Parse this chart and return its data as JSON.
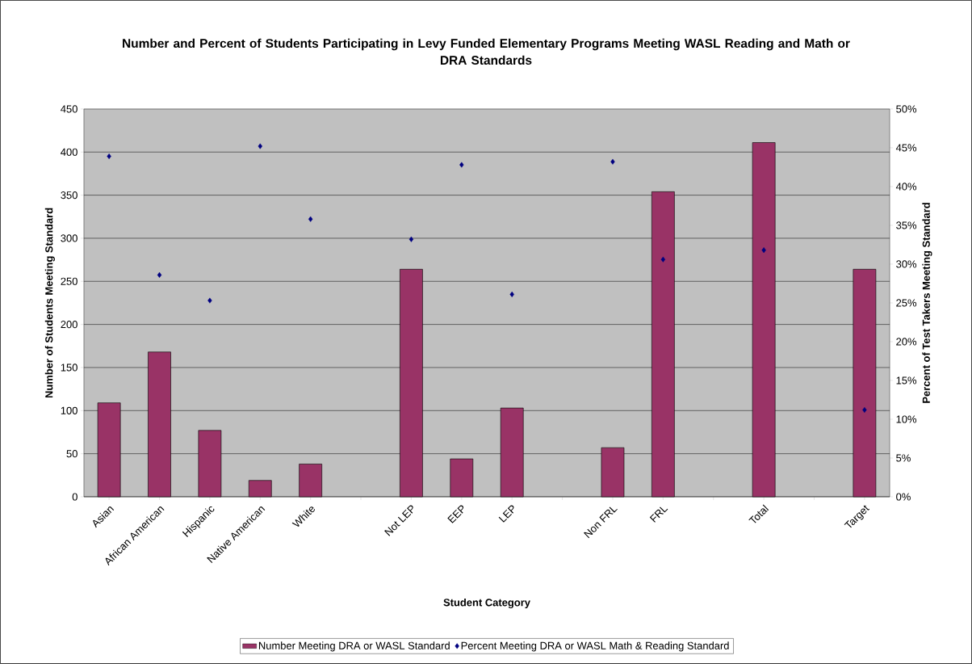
{
  "chart_data": {
    "type": "bar",
    "title": "Number and Percent of Students Participating in Levy Funded Elementary Programs Meeting WASL Reading and Math or DRA Standards",
    "xlabel": "Student Category",
    "ylabel": "Number of Students Meeting Standard",
    "y2label": "Percent of Test Takers Meeting Standard",
    "categories": [
      "Asian",
      "African American",
      "Hispanic",
      "Native American",
      "White",
      null,
      "Not LEP",
      "EEP",
      "LEP",
      null,
      "Non FRL",
      "FRL",
      null,
      "Total",
      null,
      "Target"
    ],
    "series": [
      {
        "name": "Number Meeting DRA or WASL Standard",
        "color": "#993366",
        "values": [
          109,
          168,
          77,
          19,
          38,
          null,
          264,
          44,
          103,
          null,
          57,
          354,
          null,
          411,
          null,
          264
        ]
      },
      {
        "name": "Percent Meeting DRA or WASL Math & Reading Standard",
        "type": "scatter",
        "axis": "y2",
        "color": "#000080",
        "values": [
          43.9,
          28.6,
          25.3,
          45.2,
          35.8,
          null,
          33.2,
          42.8,
          26.1,
          null,
          43.2,
          30.6,
          null,
          31.8,
          null,
          11.2
        ]
      }
    ],
    "ylim": [
      0,
      450
    ],
    "yticks": [
      0,
      50,
      100,
      150,
      200,
      250,
      300,
      350,
      400,
      450
    ],
    "y2lim": [
      0,
      50
    ],
    "y2ticks": [
      {
        "value": 0,
        "label": "0%"
      },
      {
        "value": 5,
        "label": "5%"
      },
      {
        "value": 10,
        "label": "10%"
      },
      {
        "value": 15,
        "label": "15%"
      },
      {
        "value": 20,
        "label": "20%"
      },
      {
        "value": 25,
        "label": "25%"
      },
      {
        "value": 30,
        "label": "30%"
      },
      {
        "value": 35,
        "label": "35%"
      },
      {
        "value": 40,
        "label": "40%"
      },
      {
        "value": 45,
        "label": "45%"
      },
      {
        "value": 50,
        "label": "50%"
      }
    ],
    "grid": "y",
    "legend": "bottom",
    "marker": "diamond"
  }
}
